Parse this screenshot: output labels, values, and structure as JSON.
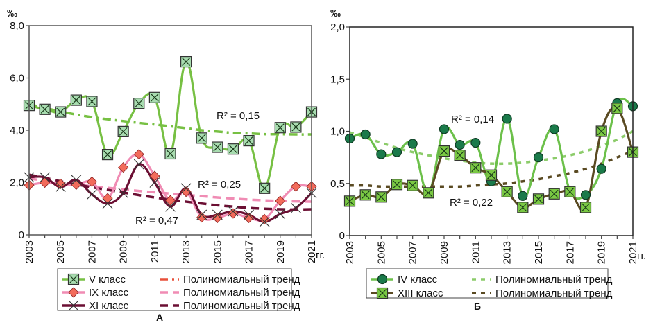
{
  "chart_data": [
    {
      "id": "A",
      "type": "line",
      "panel_label": "А",
      "ylabel": "‰",
      "xlabel": "гг.",
      "ylim": [
        0,
        8
      ],
      "yticks": [
        0,
        2,
        4,
        6,
        8
      ],
      "ytick_labels": [
        "0",
        "2,0",
        "4,0",
        "6,0",
        "8,0"
      ],
      "x": [
        2003,
        2004,
        2005,
        2006,
        2007,
        2008,
        2009,
        2010,
        2011,
        2012,
        2013,
        2014,
        2015,
        2016,
        2017,
        2018,
        2019,
        2020,
        2021
      ],
      "xtick_labels": [
        "2003",
        "2005",
        "2007",
        "2009",
        "2011",
        "2013",
        "2015",
        "2017",
        "2019",
        "2021"
      ],
      "grid": false,
      "legend_position": "bottom",
      "series": [
        {
          "name": "V класс",
          "marker": "square-x",
          "color": "#77c043",
          "marker_fill": "#a8dcb0",
          "values": [
            4.95,
            4.8,
            4.7,
            5.15,
            5.1,
            3.07,
            3.95,
            5.03,
            5.25,
            3.1,
            6.62,
            3.7,
            3.35,
            3.28,
            3.6,
            1.78,
            4.1,
            4.12,
            4.7
          ]
        },
        {
          "name": "IX класс",
          "marker": "diamond",
          "color": "#f08cb4",
          "marker_fill": "#f26b5b",
          "values": [
            1.9,
            2.0,
            1.95,
            1.92,
            2.03,
            1.4,
            2.58,
            3.08,
            2.25,
            1.32,
            1.65,
            0.67,
            0.65,
            0.82,
            0.65,
            0.6,
            1.3,
            1.85,
            1.85
          ]
        },
        {
          "name": "XI класс",
          "marker": "x",
          "color": "#6b0f33",
          "marker_fill": "#333333",
          "values": [
            2.2,
            2.2,
            1.83,
            2.1,
            1.55,
            1.2,
            1.6,
            2.7,
            2.0,
            1.08,
            1.78,
            0.77,
            0.77,
            0.9,
            0.77,
            0.5,
            0.8,
            1.03,
            1.6
          ]
        }
      ],
      "trends": [
        {
          "name": "Полиномиальный тренд",
          "for": "V класс",
          "style": "dash-dot",
          "color": "#77c043",
          "legend_color": "#e8503a",
          "r2": "R² = 0,15",
          "values": [
            5.0,
            4.85,
            4.72,
            4.6,
            4.5,
            4.42,
            4.35,
            4.28,
            4.22,
            4.15,
            4.08,
            4.0,
            3.95,
            3.9,
            3.88,
            3.85,
            3.85,
            3.84,
            3.84
          ]
        },
        {
          "name": "Полиномиальный тренд",
          "for": "IX класс",
          "style": "dash",
          "color": "#f08cb4",
          "legend_color": "#f08cb4",
          "r2": "R² = 0,25",
          "values": [
            2.15,
            2.08,
            2.0,
            1.93,
            1.86,
            1.8,
            1.74,
            1.68,
            1.63,
            1.58,
            1.53,
            1.48,
            1.43,
            1.39,
            1.35,
            1.32,
            1.3,
            1.28,
            1.27
          ]
        },
        {
          "name": "Полиномиальный тренд",
          "for": "XI класс",
          "style": "dash",
          "color": "#6b0f33",
          "legend_color": "#6b0f33",
          "r2": "R² = 0,47",
          "values": [
            2.3,
            2.18,
            2.05,
            1.93,
            1.82,
            1.72,
            1.62,
            1.52,
            1.43,
            1.35,
            1.27,
            1.2,
            1.13,
            1.08,
            1.03,
            1.0,
            0.98,
            0.97,
            0.98
          ]
        }
      ]
    },
    {
      "id": "B",
      "type": "line",
      "panel_label": "Б",
      "ylabel": "‰",
      "xlabel": "гг.",
      "ylim": [
        0,
        2
      ],
      "yticks": [
        0,
        0.5,
        1.0,
        1.5,
        2.0
      ],
      "ytick_labels": [
        "0",
        "0,5",
        "1,0",
        "1,5",
        "2,0"
      ],
      "x": [
        2003,
        2004,
        2005,
        2006,
        2007,
        2008,
        2009,
        2010,
        2011,
        2012,
        2013,
        2014,
        2015,
        2016,
        2017,
        2018,
        2019,
        2020,
        2021
      ],
      "xtick_labels": [
        "2003",
        "2005",
        "2007",
        "2009",
        "2011",
        "2013",
        "2015",
        "2017",
        "2019",
        "2021"
      ],
      "grid": false,
      "legend_position": "bottom",
      "series": [
        {
          "name": "IV класс",
          "marker": "circle",
          "color": "#6cc04a",
          "marker_fill": "#1a7a4a",
          "values": [
            0.93,
            0.97,
            0.78,
            0.8,
            0.88,
            0.41,
            1.02,
            0.87,
            0.89,
            0.52,
            1.12,
            0.38,
            0.75,
            1.02,
            0.43,
            0.39,
            0.64,
            1.27,
            1.24
          ]
        },
        {
          "name": "XIII класс",
          "marker": "square-x",
          "color": "#5a4a22",
          "marker_fill": "#7ac843",
          "values": [
            0.33,
            0.39,
            0.37,
            0.49,
            0.48,
            0.41,
            0.81,
            0.77,
            0.65,
            0.58,
            0.42,
            0.27,
            0.35,
            0.4,
            0.42,
            0.27,
            1.0,
            1.22,
            0.8
          ]
        }
      ],
      "trends": [
        {
          "name": "Полиномиальный тренд",
          "for": "IV класс",
          "style": "dot-dash",
          "color": "#8ccc6a",
          "legend_color": "#8ccc6a",
          "r2": "R² = 0,14",
          "values": [
            0.99,
            0.94,
            0.89,
            0.84,
            0.8,
            0.77,
            0.74,
            0.72,
            0.7,
            0.69,
            0.69,
            0.7,
            0.72,
            0.74,
            0.77,
            0.81,
            0.86,
            0.92,
            1.0
          ]
        },
        {
          "name": "Полиномиальный тренд",
          "for": "XIII класс",
          "style": "dot-dash",
          "color": "#5a4a22",
          "legend_color": "#5a4a22",
          "r2": "R² = 0,22",
          "values": [
            0.48,
            0.48,
            0.47,
            0.47,
            0.47,
            0.47,
            0.47,
            0.47,
            0.48,
            0.49,
            0.5,
            0.52,
            0.54,
            0.57,
            0.6,
            0.64,
            0.69,
            0.75,
            0.81
          ]
        }
      ]
    }
  ]
}
